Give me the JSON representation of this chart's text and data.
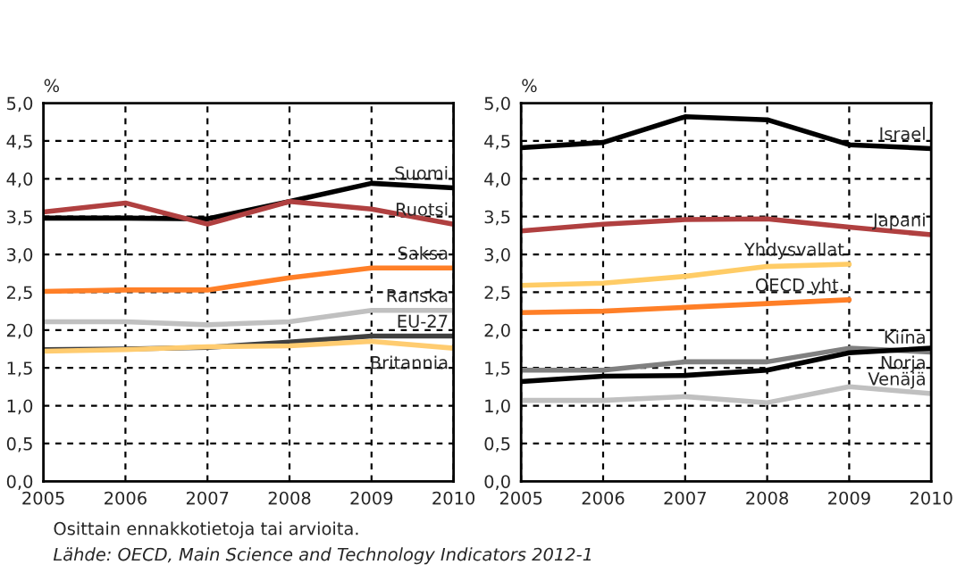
{
  "chart_data": [
    {
      "type": "line",
      "ylabel": "%",
      "x": [
        2005,
        2006,
        2007,
        2008,
        2009,
        2010
      ],
      "xlim": [
        2005,
        2010
      ],
      "xticks": [
        2005,
        2006,
        2007,
        2008,
        2009,
        2010
      ],
      "ylim": [
        0,
        5
      ],
      "yticks": [
        {
          "value": 0,
          "label": "0,0"
        },
        {
          "value": 0.5,
          "label": "0,5"
        },
        {
          "value": 1,
          "label": "1,0"
        },
        {
          "value": 1.5,
          "label": "1,5"
        },
        {
          "value": 2,
          "label": "2,0"
        },
        {
          "value": 2.5,
          "label": "2,5"
        },
        {
          "value": 3,
          "label": "3,0"
        },
        {
          "value": 3.5,
          "label": "3,5"
        },
        {
          "value": 4,
          "label": "4,0"
        },
        {
          "value": 4.5,
          "label": "4,5"
        },
        {
          "value": 5,
          "label": "5,0"
        }
      ],
      "grid": true,
      "legend": false,
      "marker": "none",
      "line_style": "solid",
      "series": [
        {
          "name": "Suomi",
          "color": "#000000",
          "values": [
            3.48,
            3.48,
            3.47,
            3.7,
            3.94,
            3.88
          ]
        },
        {
          "name": "Ruotsi",
          "color": "#b04040",
          "values": [
            3.56,
            3.68,
            3.4,
            3.7,
            3.6,
            3.4
          ]
        },
        {
          "name": "Saksa",
          "color": "#ff7f27",
          "values": [
            2.51,
            2.53,
            2.53,
            2.69,
            2.82,
            2.82
          ]
        },
        {
          "name": "Ranska",
          "color": "#c0c0c0",
          "values": [
            2.11,
            2.11,
            2.07,
            2.11,
            2.26,
            2.26
          ]
        },
        {
          "name": "EU-27",
          "color": "#404040",
          "values": [
            1.74,
            1.75,
            1.77,
            1.84,
            1.92,
            1.92
          ]
        },
        {
          "name": "Britannia",
          "color": "#ffcc70",
          "values": [
            1.72,
            1.74,
            1.78,
            1.79,
            1.85,
            1.76
          ]
        }
      ],
      "annotations": [
        "Osittain ennakkotietoja tai arvioita.",
        "Lähde: OECD, Main Science and Technology Indicators 2012-1"
      ]
    },
    {
      "type": "line",
      "ylabel": "%",
      "x": [
        2005,
        2006,
        2007,
        2008,
        2009,
        2010
      ],
      "xlim": [
        2005,
        2010
      ],
      "xticks": [
        2005,
        2006,
        2007,
        2008,
        2009,
        2010
      ],
      "ylim": [
        0,
        5
      ],
      "yticks": [
        {
          "value": 0,
          "label": "0,0"
        },
        {
          "value": 0.5,
          "label": "0,5"
        },
        {
          "value": 1,
          "label": "1,0"
        },
        {
          "value": 1.5,
          "label": "1,5"
        },
        {
          "value": 2,
          "label": "2,0"
        },
        {
          "value": 2.5,
          "label": "2,5"
        },
        {
          "value": 3,
          "label": "3,0"
        },
        {
          "value": 3.5,
          "label": "3,5"
        },
        {
          "value": 4,
          "label": "4,0"
        },
        {
          "value": 4.5,
          "label": "4,5"
        },
        {
          "value": 5,
          "label": "5,0"
        }
      ],
      "grid": true,
      "legend": false,
      "marker": "none",
      "line_style": "solid",
      "series": [
        {
          "name": "Israel",
          "color": "#000000",
          "values": [
            4.41,
            4.48,
            4.82,
            4.78,
            4.45,
            4.4
          ]
        },
        {
          "name": "Japani",
          "color": "#b04040",
          "values": [
            3.31,
            3.4,
            3.46,
            3.47,
            3.36,
            3.26
          ]
        },
        {
          "name": "Yhdysvallat",
          "color": "#ffcc66",
          "values": [
            2.59,
            2.62,
            2.71,
            2.84,
            2.87,
            null
          ]
        },
        {
          "name": "OECD yht.",
          "color": "#ff7f27",
          "values": [
            2.23,
            2.25,
            2.3,
            2.35,
            2.4,
            null
          ]
        },
        {
          "name": "Kiina",
          "color": "#808080",
          "values": [
            1.47,
            1.47,
            1.58,
            1.58,
            1.76,
            1.71
          ]
        },
        {
          "name": "Norja",
          "color": "#000000",
          "values": [
            1.32,
            1.39,
            1.4,
            1.47,
            1.7,
            1.76
          ]
        },
        {
          "name": "Venäjä",
          "color": "#c0c0c0",
          "values": [
            1.07,
            1.07,
            1.12,
            1.04,
            1.25,
            1.16
          ]
        }
      ]
    }
  ]
}
